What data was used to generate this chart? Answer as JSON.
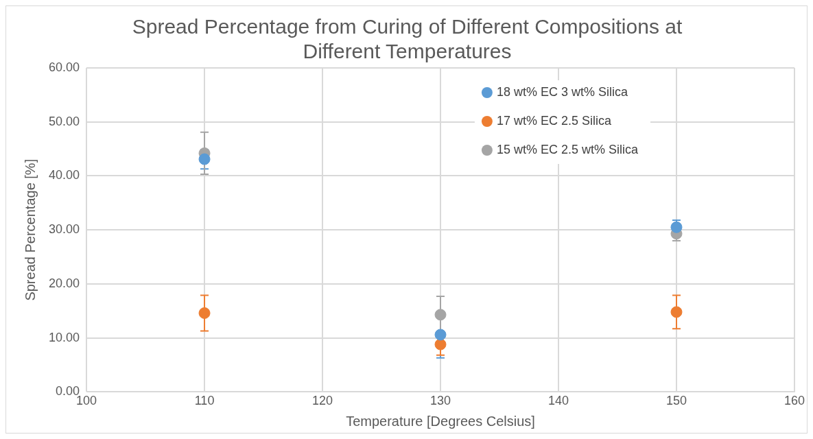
{
  "chart_data": {
    "type": "scatter",
    "title": "Spread Percentage from Curing of Different Compositions at Different Temperatures",
    "xlabel": "Temperature [Degrees Celsius]",
    "ylabel": "Spread Percentage [%]",
    "x": [
      110,
      130,
      150
    ],
    "series": [
      {
        "name": "18 wt% EC 3 wt% Silica",
        "color": "#5b9bd5",
        "values": [
          43.1,
          10.6,
          30.5
        ],
        "errors": [
          1.8,
          4.3,
          1.3
        ]
      },
      {
        "name": "17 wt% EC 2.5 Silica",
        "color": "#ed7d31",
        "values": [
          14.6,
          8.8,
          14.8
        ],
        "errors": [
          3.3,
          2.0,
          3.1
        ]
      },
      {
        "name": "15 wt% EC 2.5 wt% Silica",
        "color": "#a5a5a5",
        "values": [
          44.2,
          14.3,
          29.3
        ],
        "errors": [
          3.9,
          3.4,
          1.3
        ]
      }
    ],
    "xlim": [
      100,
      160
    ],
    "xticks": [
      100,
      110,
      120,
      130,
      140,
      150,
      160
    ],
    "ylim": [
      0,
      60
    ],
    "yticks": [
      {
        "value": 0,
        "label": "0.00"
      },
      {
        "value": 10,
        "label": "10.00"
      },
      {
        "value": 20,
        "label": "20.00"
      },
      {
        "value": 30,
        "label": "30.00"
      },
      {
        "value": 40,
        "label": "40.00"
      },
      {
        "value": 50,
        "label": "50.00"
      },
      {
        "value": 60,
        "label": "60.00"
      }
    ],
    "grid": true,
    "legend": "top right",
    "marker": "circle"
  }
}
